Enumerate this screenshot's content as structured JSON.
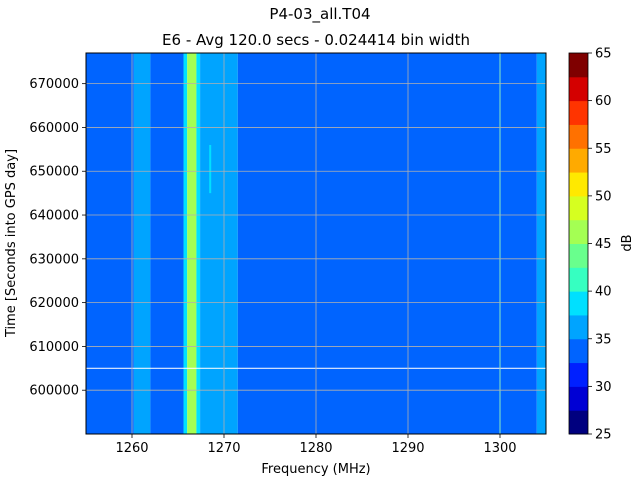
{
  "chart_data": {
    "type": "heatmap",
    "title": "P4-03_all.T04",
    "subtitle": "E6 - Avg 120.0 secs - 0.024414 bin width",
    "xlabel": "Frequency (MHz)",
    "ylabel": "Time [Seconds into GPS day]",
    "colorbar_label": "dB",
    "xlim": [
      1255,
      1305
    ],
    "ylim": [
      590000,
      677000
    ],
    "xticks": [
      1260,
      1270,
      1280,
      1290,
      1300
    ],
    "yticks": [
      600000,
      610000,
      620000,
      630000,
      640000,
      650000,
      660000,
      670000
    ],
    "color_levels": [
      25,
      27.5,
      30,
      32.5,
      35,
      37.5,
      40,
      42.5,
      45,
      47.5,
      50,
      52.5,
      55,
      57.5,
      60,
      62.5,
      65
    ],
    "colorbar_ticks": [
      25,
      30,
      35,
      40,
      45,
      50,
      55,
      60,
      65
    ],
    "colormap": [
      "#00007f",
      "#0000d4",
      "#0020ff",
      "#0064ff",
      "#00a4ff",
      "#00e0ff",
      "#36ffc1",
      "#69ff8d",
      "#a4ff53",
      "#d6ff20",
      "#ffe900",
      "#ffaa00",
      "#ff7100",
      "#ff3400",
      "#d40000",
      "#7f0000"
    ],
    "grid": true,
    "bands": [
      {
        "x": [
          1255,
          1260.2
        ],
        "value": 33.75
      },
      {
        "x": [
          1260.2,
          1262
        ],
        "value": 36.25
      },
      {
        "x": [
          1262,
          1265.6
        ],
        "value": 33.75
      },
      {
        "x": [
          1265.6,
          1266
        ],
        "value": 38.75
      },
      {
        "x": [
          1266,
          1267
        ],
        "value": 46.25
      },
      {
        "x": [
          1267,
          1267.4
        ],
        "value": 38.75
      },
      {
        "x": [
          1267.4,
          1271.5
        ],
        "value": 36.25
      },
      {
        "x": [
          1271.5,
          1304
        ],
        "value": 33.75
      },
      {
        "x": [
          1304,
          1305
        ],
        "value": 36.25
      }
    ],
    "lines": [
      {
        "x": 1300,
        "value": 36.25
      },
      {
        "x": 1268.5,
        "y": [
          645000,
          656000
        ],
        "value": 38.75
      }
    ],
    "hline_y": 605000
  }
}
